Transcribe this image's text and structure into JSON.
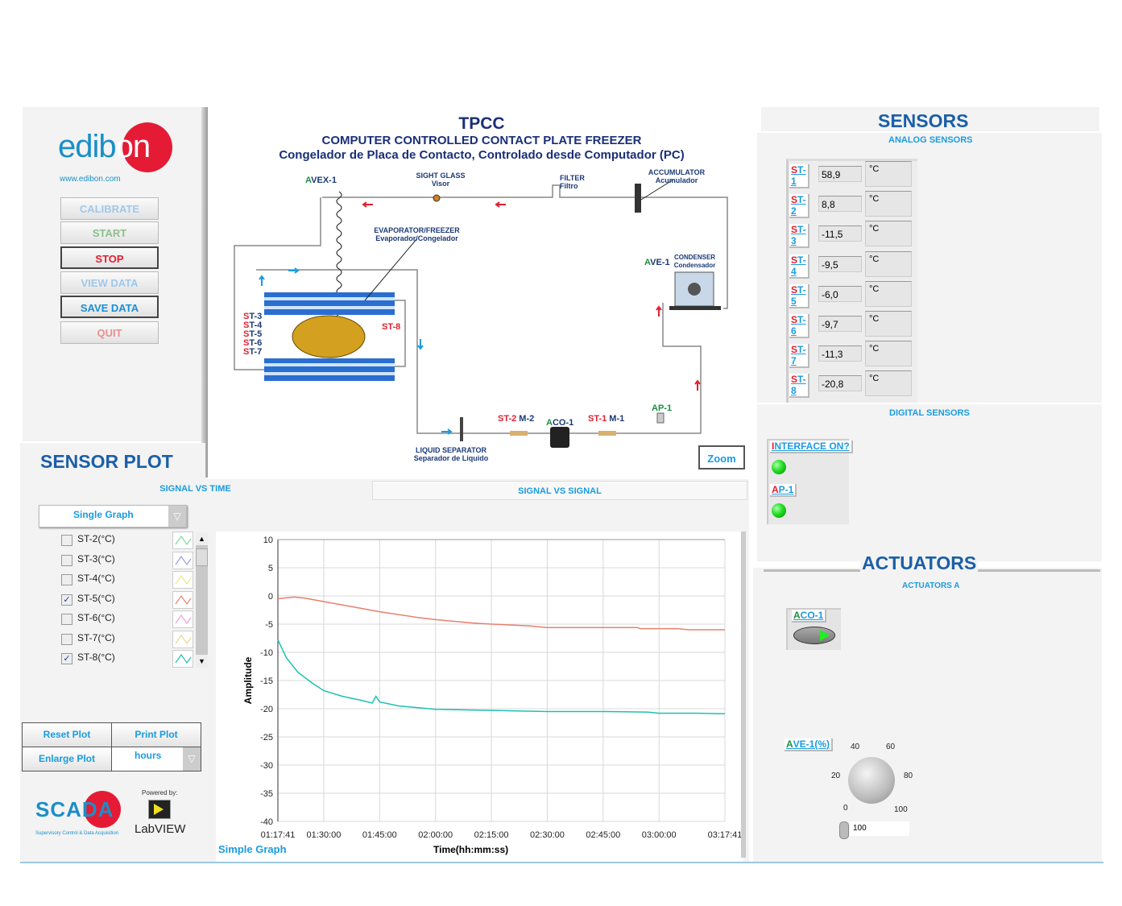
{
  "left_panel": {
    "logo_text": "edibon",
    "website": "www.edibon.com",
    "buttons": [
      {
        "label": "CALIBRATE",
        "color": "#9fc8ea"
      },
      {
        "label": "START",
        "color": "#8cc08c"
      },
      {
        "label": "STOP",
        "color": "#e02030"
      },
      {
        "label": "VIEW DATA",
        "color": "#9fc8ea"
      },
      {
        "label": "SAVE DATA",
        "color": "#1a8fd8"
      },
      {
        "label": "QUIT",
        "color": "#e89090"
      }
    ]
  },
  "diagram": {
    "title": "TPCC",
    "subtitle_en": "COMPUTER CONTROLLED CONTACT PLATE FREEZER",
    "subtitle_es": "Congelador de Placa de Contacto, Controlado desde Computador (PC)",
    "labels": {
      "avex": "AVEX-1",
      "sight_glass": "SIGHT GLASS",
      "sight_glass_es": "Visor",
      "filter": "FILTER",
      "filter_es": "Filtro",
      "accumulator": "ACCUMULATOR",
      "accumulator_es": "Acumulador",
      "evaporator": "EVAPORATOR/FREEZER",
      "evaporator_es": "Evaporador/Congelador",
      "condenser": "CONDENSER",
      "condenser_es": "Condensador",
      "ave": "AVE-1",
      "st3": "ST-3",
      "st4": "ST-4",
      "st5": "ST-5",
      "st6": "ST-6",
      "st7": "ST-7",
      "st8": "ST-8",
      "st2": "ST-2",
      "m2": "M-2",
      "aco": "ACO-1",
      "st1": "ST-1",
      "m1": "M-1",
      "ap1": "AP-1",
      "liquid_separator": "LIQUID SEPARATOR",
      "liquid_separator_es": "Separador de Liquido"
    },
    "zoom_label": "Zoom"
  },
  "sensor_plot": {
    "title": "SENSOR PLOT",
    "tabs": [
      "SIGNAL VS TIME",
      "SIGNAL VS SIGNAL"
    ],
    "graph_mode": "Single Graph",
    "channels": [
      {
        "label": "ST-2(°C)",
        "checked": false,
        "color": "#7ad9a0"
      },
      {
        "label": "ST-3(°C)",
        "checked": false,
        "color": "#9a9ae0"
      },
      {
        "label": "ST-4(°C)",
        "checked": false,
        "color": "#e8e890"
      },
      {
        "label": "ST-5(°C)",
        "checked": true,
        "color": "#e8806f"
      },
      {
        "label": "ST-6(°C)",
        "checked": false,
        "color": "#e8a0e0"
      },
      {
        "label": "ST-7(°C)",
        "checked": false,
        "color": "#e8d890"
      },
      {
        "label": "ST-8(°C)",
        "checked": true,
        "color": "#1ec0b0"
      }
    ],
    "reset_label": "Reset Plot",
    "print_label": "Print Plot",
    "enlarge_label": "Enlarge Plot",
    "time_unit": "hours",
    "graph_caption": "Simple Graph",
    "scada_text": "SCADA",
    "scada_sub": "Supervisory Control & Data Acquisition",
    "powered_by": "Powered by:",
    "labview": "LabVIEW"
  },
  "chart_data": {
    "type": "line",
    "xlabel": "Time(hh:mm:ss)",
    "ylabel": "Amplitude",
    "xlim": [
      "01:17:41",
      "03:17:41"
    ],
    "ylim": [
      -40,
      10
    ],
    "grid": true,
    "x_ticks": [
      "01:17:41",
      "01:30:00",
      "01:45:00",
      "02:00:00",
      "02:15:00",
      "02:30:00",
      "02:45:00",
      "03:00:00",
      "03:17:41"
    ],
    "y_ticks": [
      10,
      5,
      0,
      -5,
      -10,
      -15,
      -20,
      -25,
      -30,
      -35,
      -40
    ],
    "series": [
      {
        "name": "ST-5(°C)",
        "color": "#e8806f",
        "x": [
          "01:17:41",
          "01:22:00",
          "01:25:00",
          "01:30:00",
          "01:40:00",
          "01:45:00",
          "01:55:00",
          "02:00:00",
          "02:10:00",
          "02:15:00",
          "02:25:00",
          "02:30:00",
          "02:45:00",
          "02:54:00",
          "02:55:00",
          "03:05:00",
          "03:08:00",
          "03:17:41"
        ],
        "y": [
          -0.5,
          -0.2,
          -0.4,
          -1.0,
          -2.2,
          -2.8,
          -3.8,
          -4.2,
          -4.8,
          -5.0,
          -5.3,
          -5.6,
          -5.6,
          -5.6,
          -5.8,
          -5.8,
          -6.0,
          -6.0
        ]
      },
      {
        "name": "ST-8(°C)",
        "color": "#1ec0b0",
        "x": [
          "01:17:41",
          "01:20:00",
          "01:23:00",
          "01:27:00",
          "01:30:00",
          "01:35:00",
          "01:40:00",
          "01:43:00",
          "01:44:00",
          "01:45:00",
          "01:50:00",
          "01:55:00",
          "02:00:00",
          "02:15:00",
          "02:30:00",
          "02:45:00",
          "02:57:00",
          "03:00:00",
          "03:10:00",
          "03:17:41"
        ],
        "y": [
          -7.8,
          -11,
          -13.5,
          -15.5,
          -16.8,
          -17.8,
          -18.5,
          -19,
          -17.8,
          -18.8,
          -19.5,
          -19.8,
          -20.1,
          -20.3,
          -20.5,
          -20.5,
          -20.6,
          -20.8,
          -20.8,
          -20.9
        ]
      }
    ]
  },
  "sensors": {
    "title": "SENSORS",
    "analog_title": "ANALOG SENSORS",
    "analog": [
      {
        "label": "ST-1",
        "value": "58,9",
        "unit": "°C"
      },
      {
        "label": "ST-2",
        "value": "8,8",
        "unit": "°C"
      },
      {
        "label": "ST-3",
        "value": "-11,5",
        "unit": "°C"
      },
      {
        "label": "ST-4",
        "value": "-9,5",
        "unit": "°C"
      },
      {
        "label": "ST-5",
        "value": "-6,0",
        "unit": "°C"
      },
      {
        "label": "ST-6",
        "value": "-9,7",
        "unit": "°C"
      },
      {
        "label": "ST-7",
        "value": "-11,3",
        "unit": "°C"
      },
      {
        "label": "ST-8",
        "value": "-20,8",
        "unit": "°C"
      }
    ],
    "digital_title": "DIGITAL SENSORS",
    "digital": [
      {
        "label": "INTERFACE ON?",
        "state": "on"
      },
      {
        "label": "AP-1",
        "state": "on"
      }
    ]
  },
  "actuators": {
    "title": "ACTUATORS",
    "group_title": "ACTUATORS A",
    "aco_label": "ACO-1",
    "aco_state": "on",
    "ave_label": "AVE-1(%)",
    "ave_value": "100",
    "ave_knob_ticks": [
      "0",
      "20",
      "40",
      "60",
      "80",
      "100"
    ]
  }
}
